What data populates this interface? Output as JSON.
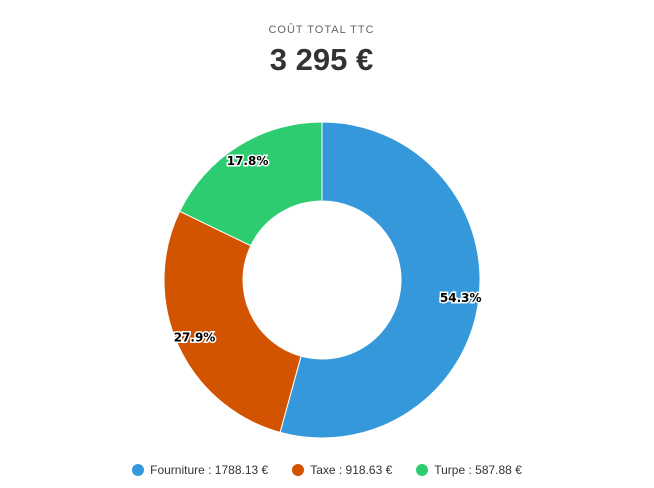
{
  "header": {
    "subtitle": "COÛT TOTAL TTC",
    "total": "3 295 €"
  },
  "chart_data": {
    "type": "pie",
    "donut": true,
    "categories": [
      "Fourniture",
      "Taxe",
      "Turpe"
    ],
    "values": [
      1788.13,
      918.63,
      587.88
    ],
    "percent_labels": [
      "54.3%",
      "27.9%",
      "17.8%"
    ],
    "colors": [
      "#3498db",
      "#d35400",
      "#2ecc71"
    ],
    "legend_labels": [
      "Fourniture : 1788.13 €",
      "Taxe : 918.63 €",
      "Turpe : 587.88 €"
    ],
    "legend_position": "bottom"
  }
}
